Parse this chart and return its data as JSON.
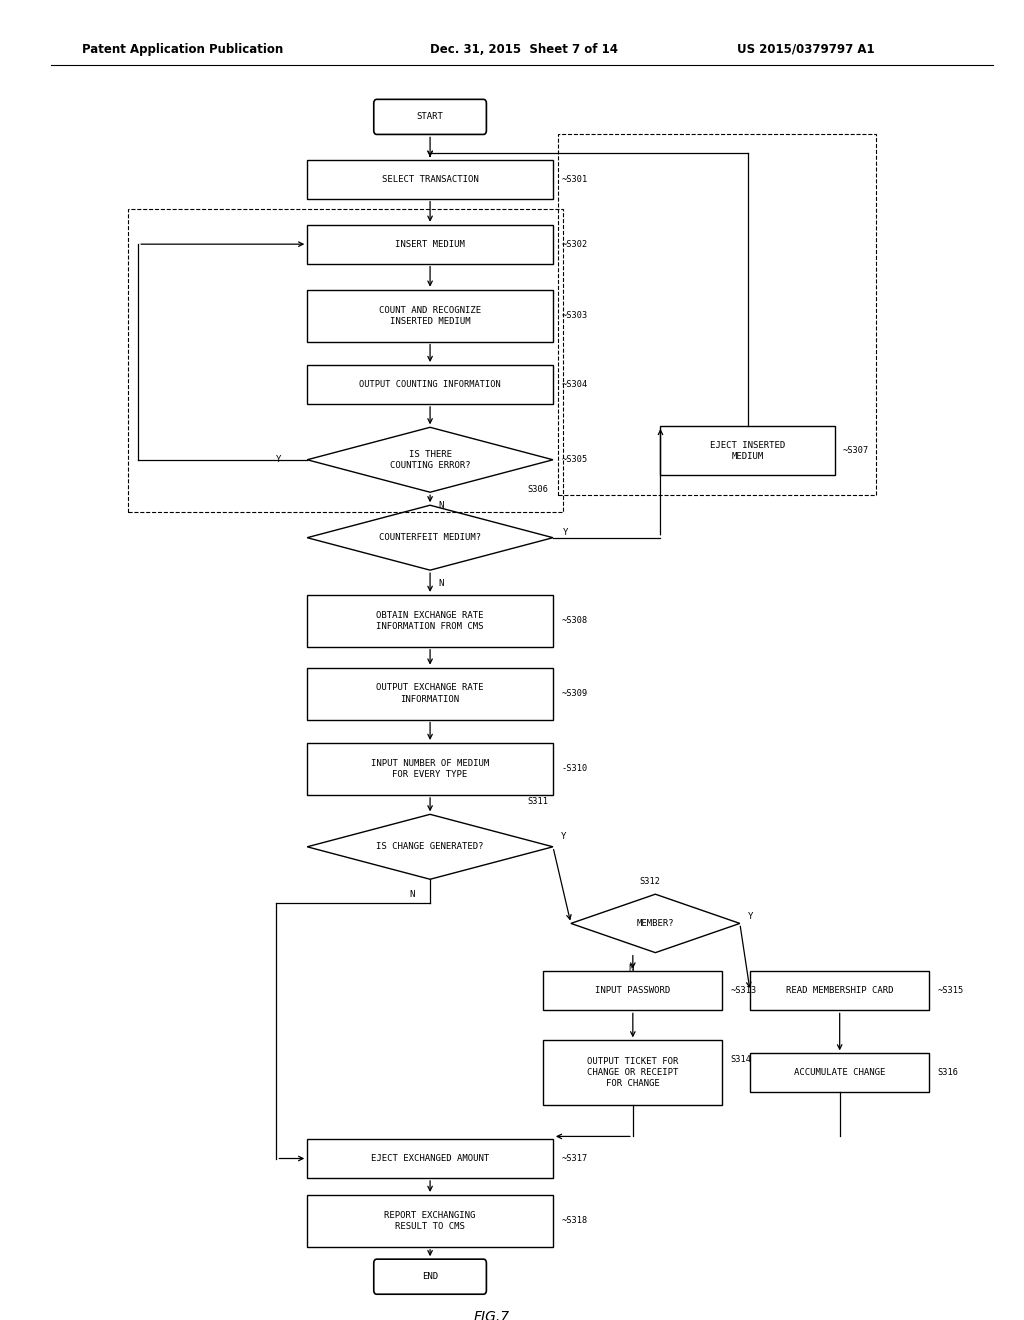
{
  "bg_color": "#ffffff",
  "line_color": "#000000",
  "text_color": "#000000",
  "header_left": "Patent Application Publication",
  "header_mid": "Dec. 31, 2015  Sheet 7 of 14",
  "header_right": "US 2015/0379797 A1",
  "fig_label": "FIG.7",
  "font_size": 6.5,
  "header_font_size": 8.5
}
